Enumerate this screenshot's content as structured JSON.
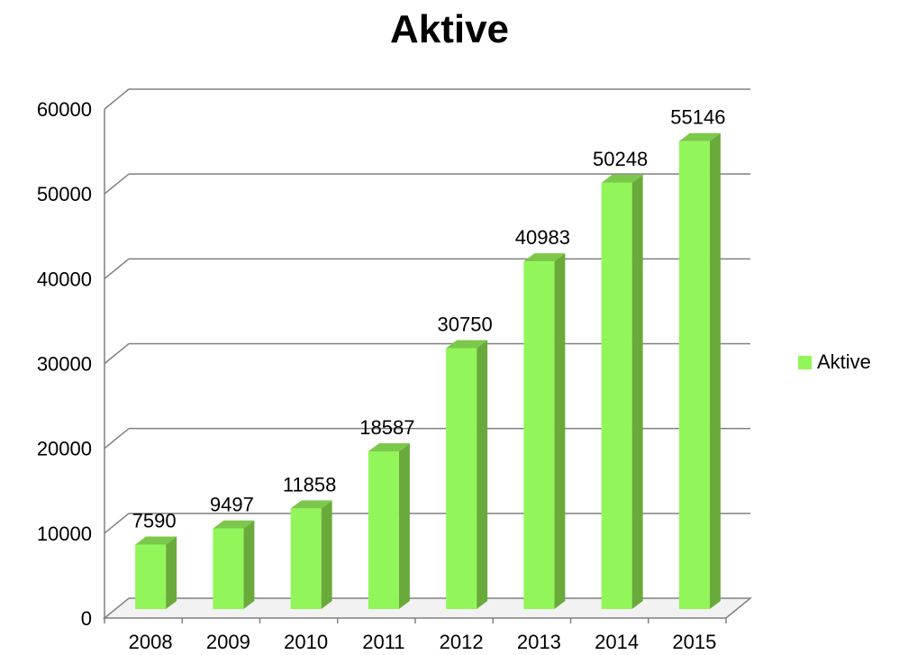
{
  "chart_data": {
    "type": "bar",
    "title": "Aktive",
    "categories": [
      "2008",
      "2009",
      "2010",
      "2011",
      "2012",
      "2013",
      "2014",
      "2015"
    ],
    "series": [
      {
        "name": "Aktive",
        "values": [
          7590,
          9497,
          11858,
          18587,
          30750,
          40983,
          50248,
          55146
        ]
      }
    ],
    "ylim": [
      0,
      60000
    ],
    "yticks": [
      0,
      10000,
      20000,
      30000,
      40000,
      50000,
      60000
    ],
    "grid": true,
    "legend_position": "right",
    "data_labels": true,
    "style": "3d-column",
    "colors": {
      "bar_front": "#92f65a",
      "bar_side": "#6aaa3a",
      "bar_top": "#7cc84a",
      "grid": "#808080"
    }
  }
}
